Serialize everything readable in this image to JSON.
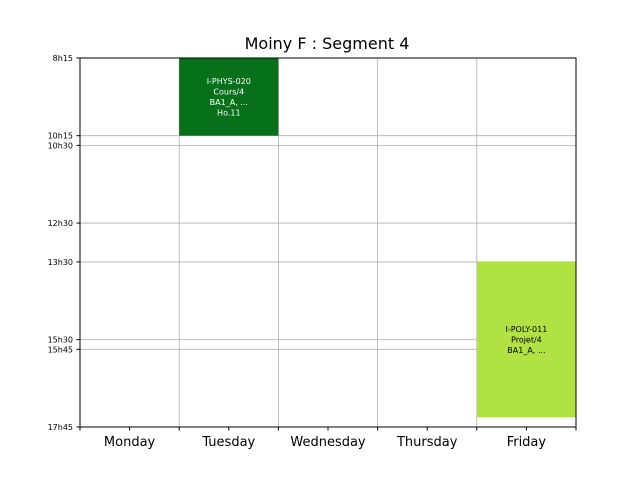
{
  "chart_data": {
    "type": "bar",
    "title": "Moiny F : Segment 4",
    "categories": [
      "Monday",
      "Tuesday",
      "Wednesday",
      "Thursday",
      "Friday"
    ],
    "y_ticks": [
      {
        "label": "8h15",
        "value": 8.25
      },
      {
        "label": "10h15",
        "value": 10.25
      },
      {
        "label": "10h30",
        "value": 10.5
      },
      {
        "label": "12h30",
        "value": 12.5
      },
      {
        "label": "13h30",
        "value": 13.5
      },
      {
        "label": "15h30",
        "value": 15.5
      },
      {
        "label": "15h45",
        "value": 15.75
      },
      {
        "label": "17h45",
        "value": 17.75
      }
    ],
    "ylim": [
      8.25,
      17.75
    ],
    "y_inverted": true,
    "grid": true,
    "events": [
      {
        "day": "Tuesday",
        "start": 8.25,
        "end": 10.25,
        "color": "#07701b",
        "text_color": "#ffffff",
        "lines": [
          "I-PHYS-020",
          "Cours/4",
          "BA1_A, ...",
          "Ho.11"
        ]
      },
      {
        "day": "Friday",
        "start": 13.5,
        "end": 17.5,
        "color": "#b0e341",
        "text_color": "#000000",
        "lines": [
          "I-POLY-011",
          "Projet/4",
          "BA1_A, ..."
        ]
      }
    ]
  }
}
